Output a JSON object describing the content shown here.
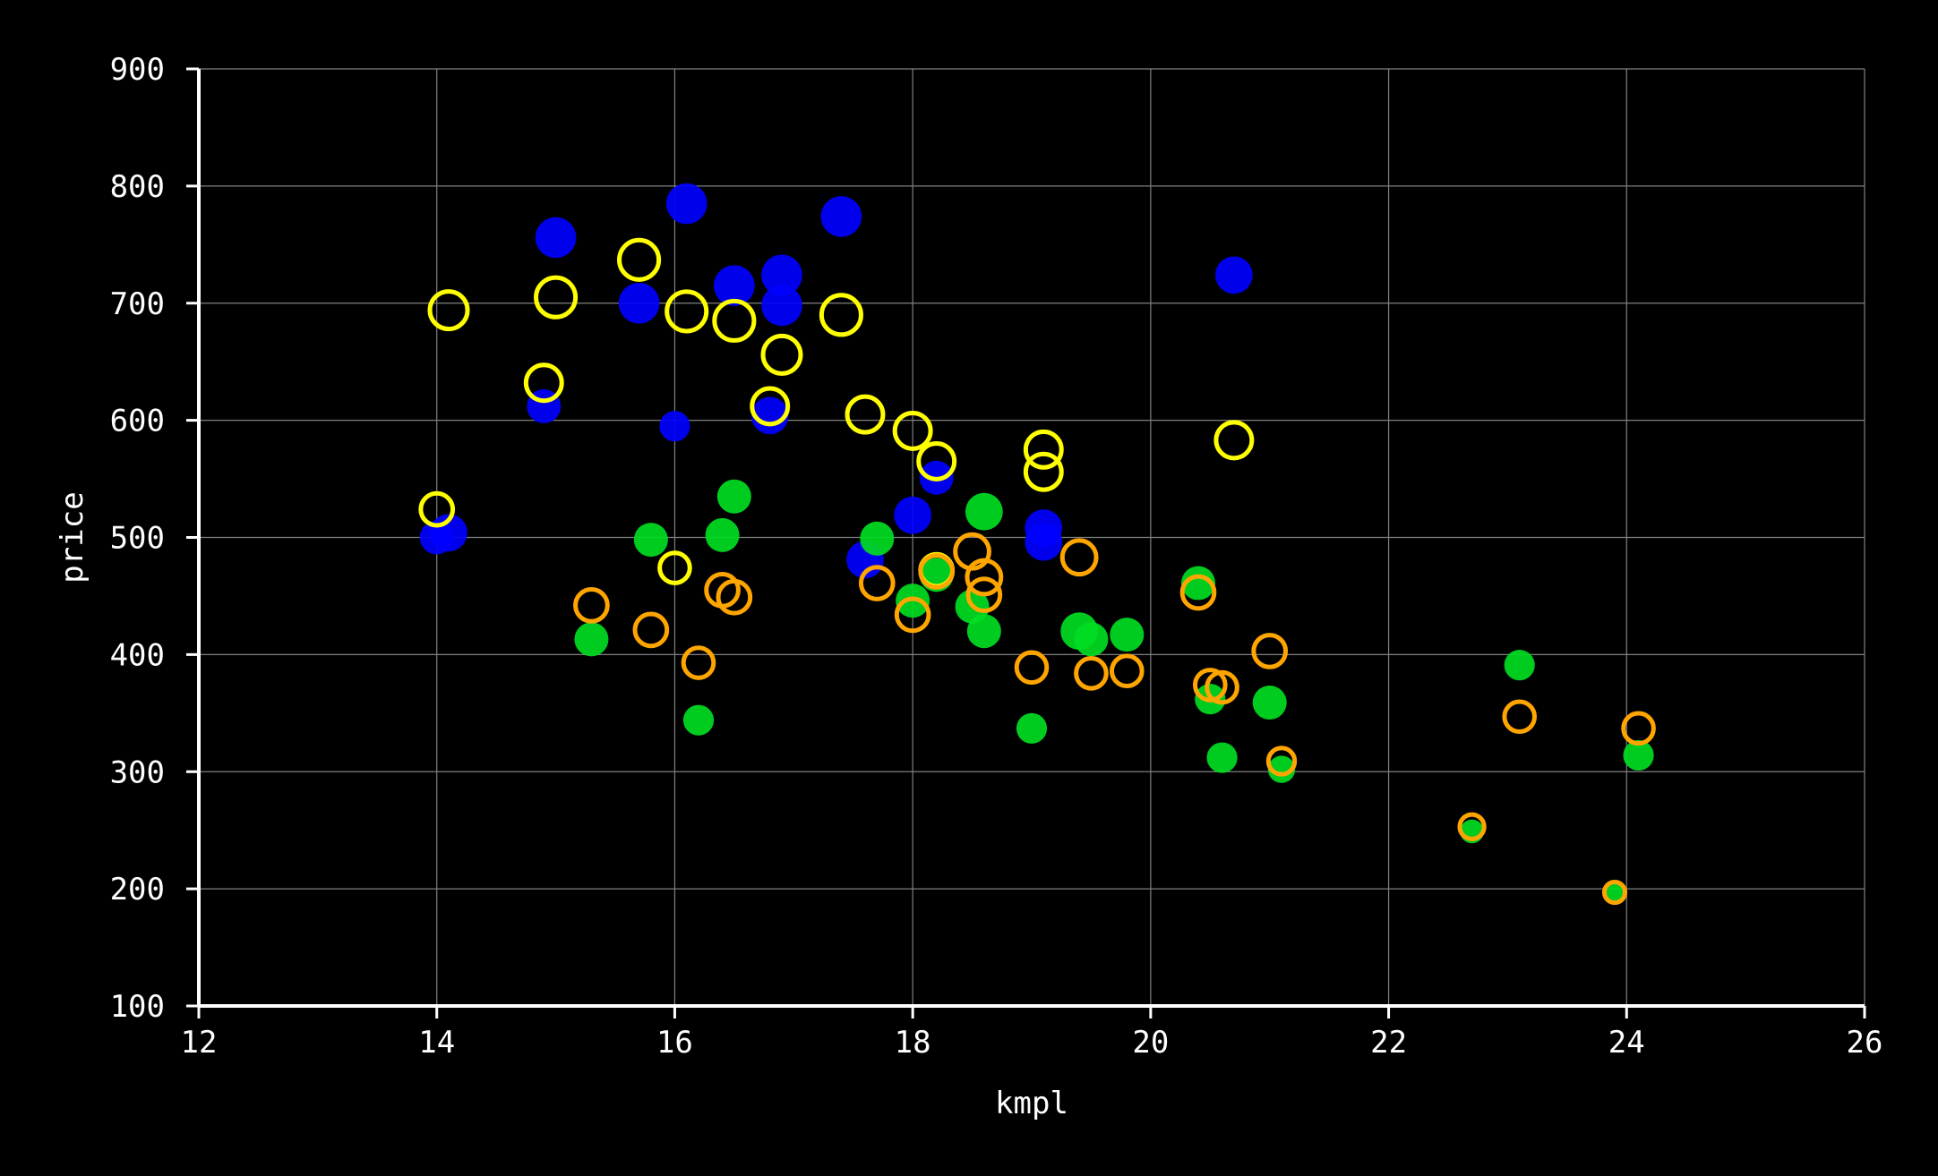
{
  "chart_data": {
    "type": "scatter",
    "title": "",
    "xlabel": "kmpl",
    "ylabel": "price",
    "xlim": [
      12,
      26
    ],
    "ylim": [
      100,
      900
    ],
    "x_ticks": [
      "12",
      "14",
      "16",
      "18",
      "20",
      "22",
      "24",
      "26"
    ],
    "y_ticks": [
      "100",
      "200",
      "300",
      "400",
      "500",
      "600",
      "700",
      "800",
      "900"
    ],
    "grid": true,
    "legend": "none",
    "background": "#000000",
    "foreground": "#ffffff",
    "grid_color": "#808080",
    "series": [
      {
        "style": "filled",
        "color": "#0000ff",
        "points": [
          {
            "x": 14.0,
            "y": 500,
            "size": 1.0
          },
          {
            "x": 14.1,
            "y": 504,
            "size": 1.1
          },
          {
            "x": 14.9,
            "y": 612,
            "size": 1.0
          },
          {
            "x": 15.0,
            "y": 756,
            "size": 1.2
          },
          {
            "x": 15.7,
            "y": 700,
            "size": 1.2
          },
          {
            "x": 16.0,
            "y": 595,
            "size": 0.9
          },
          {
            "x": 16.1,
            "y": 785,
            "size": 1.2
          },
          {
            "x": 16.5,
            "y": 715,
            "size": 1.2
          },
          {
            "x": 16.8,
            "y": 604,
            "size": 1.1
          },
          {
            "x": 16.9,
            "y": 724,
            "size": 1.2
          },
          {
            "x": 16.9,
            "y": 698,
            "size": 1.2
          },
          {
            "x": 17.4,
            "y": 774,
            "size": 1.2
          },
          {
            "x": 17.6,
            "y": 481,
            "size": 1.1
          },
          {
            "x": 18.0,
            "y": 519,
            "size": 1.1
          },
          {
            "x": 18.2,
            "y": 551,
            "size": 1.0
          },
          {
            "x": 19.1,
            "y": 508,
            "size": 1.1
          },
          {
            "x": 19.1,
            "y": 496,
            "size": 1.1
          },
          {
            "x": 20.7,
            "y": 724,
            "size": 1.1
          }
        ]
      },
      {
        "style": "filled",
        "color": "#00dd22",
        "points": [
          {
            "x": 15.3,
            "y": 413,
            "size": 1.0
          },
          {
            "x": 15.8,
            "y": 498,
            "size": 1.0
          },
          {
            "x": 16.2,
            "y": 344,
            "size": 0.9
          },
          {
            "x": 16.4,
            "y": 502,
            "size": 1.0
          },
          {
            "x": 16.5,
            "y": 535,
            "size": 1.0
          },
          {
            "x": 17.7,
            "y": 499,
            "size": 1.0
          },
          {
            "x": 18.0,
            "y": 446,
            "size": 1.0
          },
          {
            "x": 18.2,
            "y": 468,
            "size": 1.0
          },
          {
            "x": 18.5,
            "y": 441,
            "size": 1.0
          },
          {
            "x": 18.6,
            "y": 522,
            "size": 1.1
          },
          {
            "x": 18.6,
            "y": 420,
            "size": 1.0
          },
          {
            "x": 19.0,
            "y": 337,
            "size": 0.9
          },
          {
            "x": 19.4,
            "y": 420,
            "size": 1.1
          },
          {
            "x": 19.5,
            "y": 413,
            "size": 1.0
          },
          {
            "x": 19.8,
            "y": 417,
            "size": 1.0
          },
          {
            "x": 20.4,
            "y": 461,
            "size": 1.0
          },
          {
            "x": 20.5,
            "y": 362,
            "size": 0.9
          },
          {
            "x": 20.6,
            "y": 312,
            "size": 0.9
          },
          {
            "x": 21.0,
            "y": 359,
            "size": 1.0
          },
          {
            "x": 21.1,
            "y": 302,
            "size": 0.8
          },
          {
            "x": 22.7,
            "y": 249,
            "size": 0.7
          },
          {
            "x": 23.1,
            "y": 391,
            "size": 0.9
          },
          {
            "x": 23.9,
            "y": 197,
            "size": 0.6
          },
          {
            "x": 24.1,
            "y": 314,
            "size": 0.9
          }
        ]
      },
      {
        "style": "hollow",
        "color": "#ffff00",
        "points": [
          {
            "x": 14.0,
            "y": 524,
            "size": 0.85
          },
          {
            "x": 14.1,
            "y": 694,
            "size": 1.0
          },
          {
            "x": 14.9,
            "y": 632,
            "size": 0.95
          },
          {
            "x": 15.0,
            "y": 705,
            "size": 1.05
          },
          {
            "x": 15.7,
            "y": 737,
            "size": 1.05
          },
          {
            "x": 16.0,
            "y": 474,
            "size": 0.8
          },
          {
            "x": 16.1,
            "y": 693,
            "size": 1.05
          },
          {
            "x": 16.5,
            "y": 685,
            "size": 1.05
          },
          {
            "x": 16.8,
            "y": 612,
            "size": 0.95
          },
          {
            "x": 16.9,
            "y": 656,
            "size": 1.0
          },
          {
            "x": 17.4,
            "y": 690,
            "size": 1.05
          },
          {
            "x": 17.6,
            "y": 605,
            "size": 0.95
          },
          {
            "x": 18.0,
            "y": 591,
            "size": 0.95
          },
          {
            "x": 18.2,
            "y": 565,
            "size": 0.95
          },
          {
            "x": 18.2,
            "y": 472,
            "size": 0.85
          },
          {
            "x": 19.1,
            "y": 575,
            "size": 0.95
          },
          {
            "x": 19.1,
            "y": 556,
            "size": 0.95
          },
          {
            "x": 20.7,
            "y": 583,
            "size": 0.95
          }
        ]
      },
      {
        "style": "hollow",
        "color": "#ffa500",
        "points": [
          {
            "x": 15.3,
            "y": 442,
            "size": 0.85
          },
          {
            "x": 15.8,
            "y": 421,
            "size": 0.85
          },
          {
            "x": 16.2,
            "y": 393,
            "size": 0.8
          },
          {
            "x": 16.4,
            "y": 455,
            "size": 0.85
          },
          {
            "x": 16.5,
            "y": 449,
            "size": 0.85
          },
          {
            "x": 17.7,
            "y": 461,
            "size": 0.85
          },
          {
            "x": 18.0,
            "y": 434,
            "size": 0.85
          },
          {
            "x": 18.2,
            "y": 471,
            "size": 0.85
          },
          {
            "x": 18.5,
            "y": 488,
            "size": 0.9
          },
          {
            "x": 18.6,
            "y": 466,
            "size": 0.9
          },
          {
            "x": 18.6,
            "y": 451,
            "size": 0.85
          },
          {
            "x": 19.0,
            "y": 389,
            "size": 0.8
          },
          {
            "x": 19.4,
            "y": 483,
            "size": 0.9
          },
          {
            "x": 19.5,
            "y": 384,
            "size": 0.8
          },
          {
            "x": 19.8,
            "y": 386,
            "size": 0.8
          },
          {
            "x": 20.4,
            "y": 453,
            "size": 0.85
          },
          {
            "x": 20.5,
            "y": 374,
            "size": 0.8
          },
          {
            "x": 20.6,
            "y": 372,
            "size": 0.8
          },
          {
            "x": 21.0,
            "y": 403,
            "size": 0.85
          },
          {
            "x": 21.1,
            "y": 309,
            "size": 0.7
          },
          {
            "x": 22.7,
            "y": 253,
            "size": 0.65
          },
          {
            "x": 23.1,
            "y": 347,
            "size": 0.8
          },
          {
            "x": 23.9,
            "y": 197,
            "size": 0.55
          },
          {
            "x": 24.1,
            "y": 337,
            "size": 0.8
          }
        ]
      }
    ]
  }
}
